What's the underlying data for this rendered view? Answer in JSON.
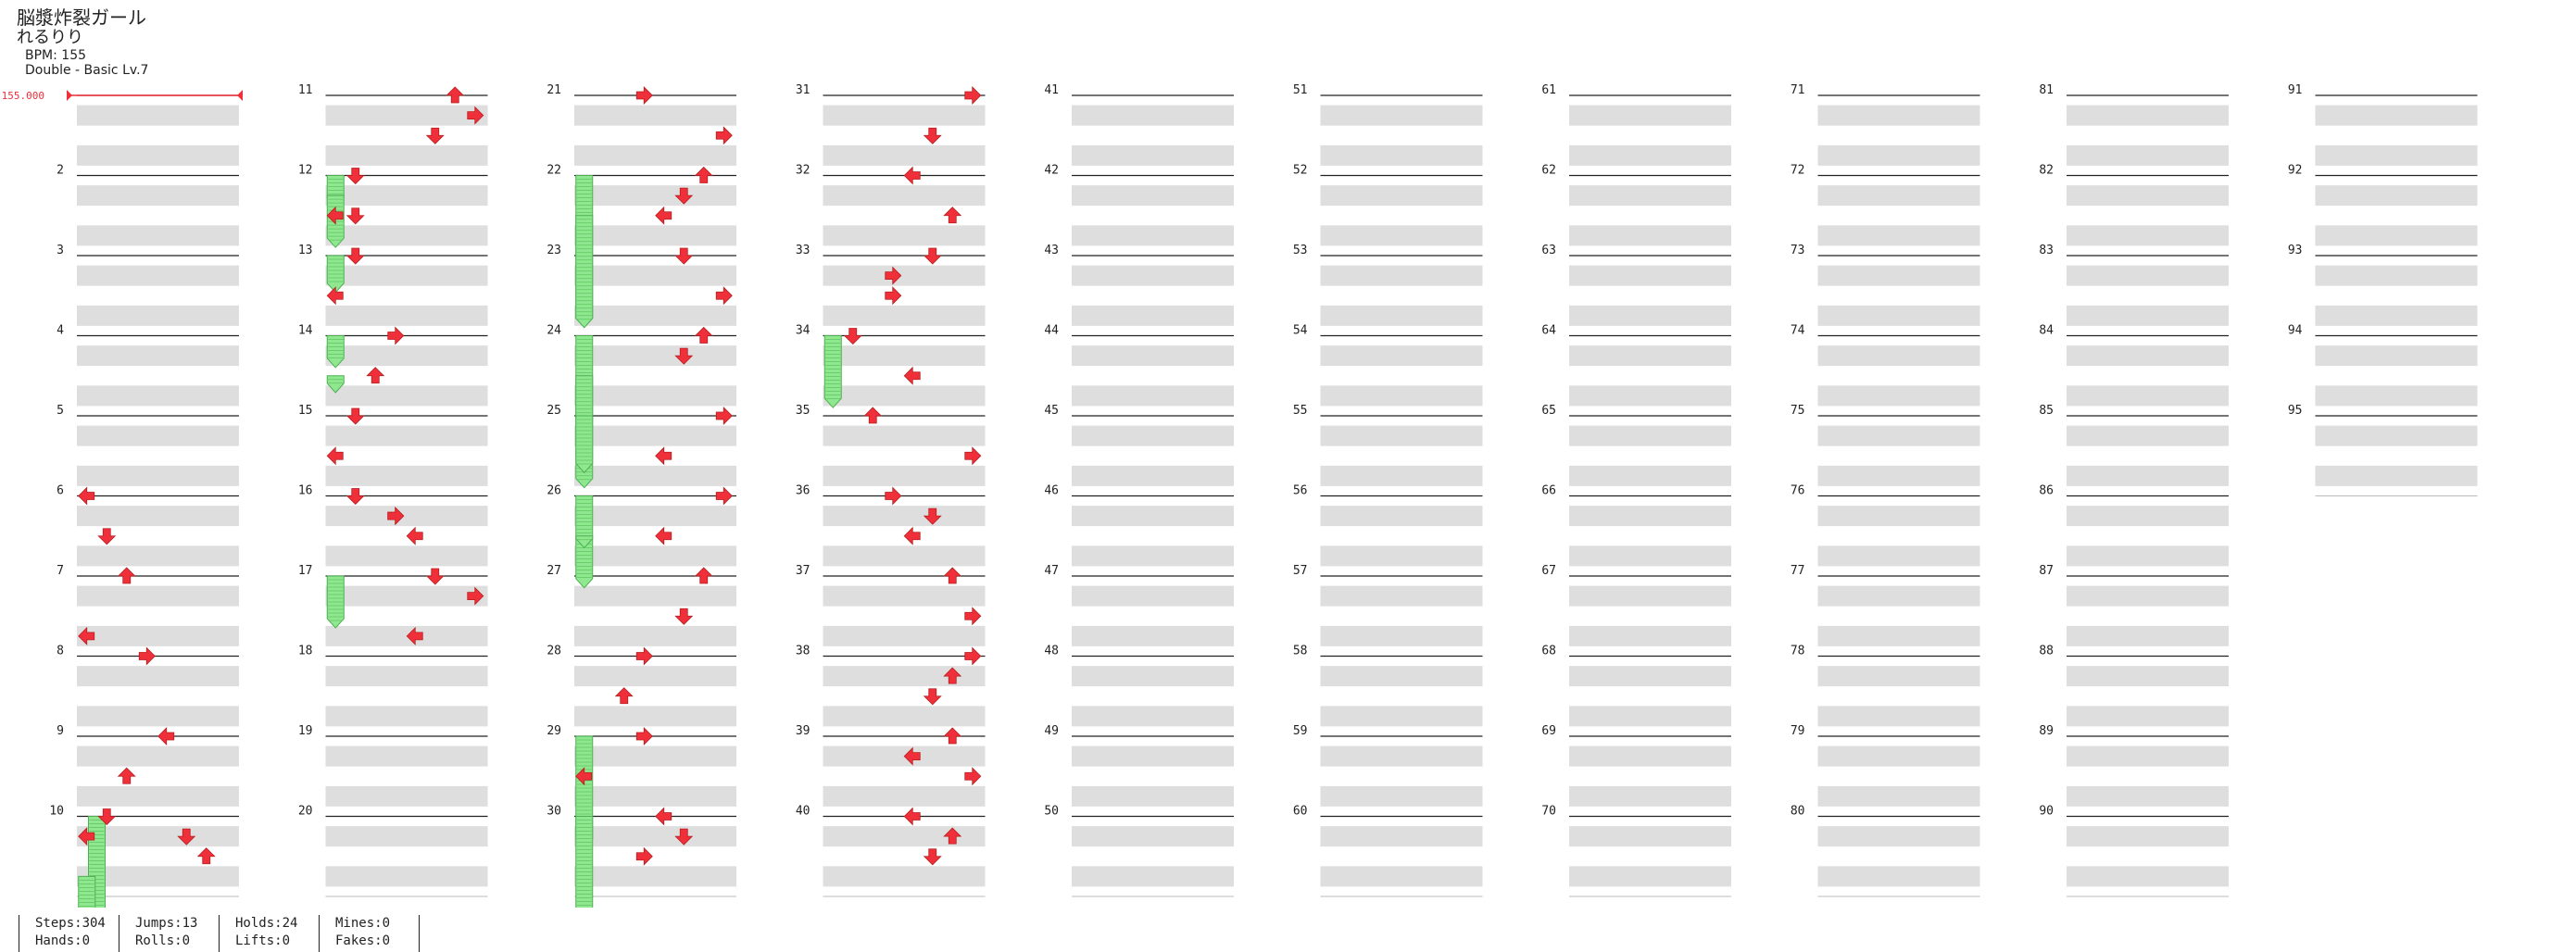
{
  "song": {
    "title": "脳漿炸裂ガール",
    "artist": "れるりり",
    "bpm": "BPM: 155",
    "difficulty": "Double - Basic Lv.7"
  },
  "bpm_marker": "155.000",
  "stats": [
    {
      "top": "Steps:304",
      "bottom": "Hands:0"
    },
    {
      "top": "Jumps:13",
      "bottom": "Rolls:0"
    },
    {
      "top": "Holds:24",
      "bottom": "Lifts:0"
    },
    {
      "top": "Mines:0",
      "bottom": "Fakes:0"
    }
  ],
  "colors": {
    "arrow": "#ef2f3a",
    "hold": "#8fe88f",
    "rowShade": "#dedede",
    "measureLine": "#222222"
  },
  "chart": {
    "type": "stepchart",
    "style": "dance-double",
    "lanes": [
      "P1-Left",
      "P1-Down",
      "P1-Up",
      "P1-Right",
      "P2-Left",
      "P2-Down",
      "P2-Up",
      "P2-Right"
    ],
    "columns": 10,
    "measures_per_column": 10,
    "measure_labels": [
      "2",
      "3",
      "4",
      "5",
      "6",
      "7",
      "8",
      "9",
      "10",
      "11",
      "12",
      "13",
      "14",
      "15",
      "16",
      "17",
      "18",
      "19",
      "20",
      "21",
      "22",
      "23",
      "24",
      "25",
      "26",
      "27",
      "28",
      "29",
      "30",
      "31",
      "32",
      "33",
      "34",
      "35",
      "36",
      "37",
      "38",
      "39",
      "40",
      "41",
      "42",
      "43",
      "44",
      "45",
      "46",
      "47",
      "48",
      "49",
      "50",
      "51",
      "52",
      "53",
      "54",
      "55",
      "56",
      "57",
      "58",
      "59",
      "60",
      "61",
      "62",
      "63",
      "64",
      "65",
      "66",
      "67",
      "68",
      "69",
      "70",
      "71",
      "72",
      "73",
      "74",
      "75",
      "76",
      "77",
      "78",
      "79",
      "80",
      "81",
      "82",
      "83",
      "84",
      "85",
      "86",
      "87",
      "88",
      "89",
      "90",
      "91",
      "92",
      "93",
      "94",
      "95"
    ],
    "notes": [
      [
        6,
        0,
        0
      ],
      [
        6,
        0.5,
        1
      ],
      [
        7,
        0,
        2
      ],
      [
        7,
        0.75,
        0
      ],
      [
        8,
        0,
        3
      ],
      [
        9,
        0,
        4
      ],
      [
        9,
        0.5,
        2
      ],
      [
        10,
        0,
        1
      ],
      [
        10,
        0.25,
        0
      ],
      [
        10.25,
        0,
        5
      ],
      [
        10.5,
        0,
        6
      ],
      [
        11,
        0,
        6
      ],
      [
        11,
        0.25,
        7
      ],
      [
        11.5,
        0,
        5
      ],
      [
        12,
        0,
        1
      ],
      [
        12.5,
        0,
        0
      ],
      [
        12.5,
        0,
        1
      ],
      [
        13,
        0,
        1
      ],
      [
        13,
        0.5,
        0
      ],
      [
        14,
        0,
        3
      ],
      [
        14,
        0.5,
        2
      ],
      [
        15,
        0,
        1
      ],
      [
        15,
        0.5,
        0
      ],
      [
        16,
        0,
        1
      ],
      [
        16,
        0.25,
        3
      ],
      [
        16.25,
        0,
        3
      ],
      [
        16.5,
        0,
        4
      ],
      [
        17,
        0,
        5
      ],
      [
        17,
        0.25,
        7
      ],
      [
        17.75,
        0,
        4
      ],
      [
        21,
        0,
        3
      ],
      [
        21,
        0.5,
        7
      ],
      [
        22,
        0,
        6
      ],
      [
        22,
        0.25,
        5
      ],
      [
        22.5,
        0,
        4
      ],
      [
        23,
        0,
        5
      ],
      [
        23,
        0.5,
        7
      ],
      [
        24,
        0,
        6
      ],
      [
        24,
        0.25,
        5
      ],
      [
        25,
        0,
        7
      ],
      [
        25,
        0.5,
        4
      ],
      [
        26,
        0,
        7
      ],
      [
        26,
        0.5,
        4
      ],
      [
        27,
        0,
        6
      ],
      [
        27,
        0.5,
        5
      ],
      [
        28,
        0,
        3
      ],
      [
        28,
        0.5,
        2
      ],
      [
        29,
        0,
        3
      ],
      [
        29,
        0.5,
        0
      ],
      [
        30,
        0,
        4
      ],
      [
        30,
        0.25,
        5
      ],
      [
        30.5,
        0,
        3
      ],
      [
        31,
        0,
        7
      ],
      [
        31,
        0.5,
        5
      ],
      [
        32,
        0,
        4
      ],
      [
        32,
        0.5,
        6
      ],
      [
        33,
        0,
        5
      ],
      [
        33,
        0.25,
        3
      ],
      [
        33.5,
        0,
        3
      ],
      [
        34,
        0,
        1
      ],
      [
        34,
        0.5,
        4
      ],
      [
        35,
        0,
        2
      ],
      [
        35,
        0.5,
        7
      ],
      [
        36,
        0,
        3
      ],
      [
        36,
        0.25,
        5
      ],
      [
        36.5,
        0,
        4
      ],
      [
        37,
        0,
        6
      ],
      [
        37,
        0.5,
        7
      ],
      [
        38,
        0,
        7
      ],
      [
        38,
        0.25,
        6
      ],
      [
        38.5,
        0,
        5
      ],
      [
        39,
        0,
        6
      ],
      [
        39,
        0.25,
        4
      ],
      [
        39.5,
        0,
        7
      ],
      [
        40,
        0,
        4
      ],
      [
        40,
        0.25,
        6
      ],
      [
        40.5,
        0,
        5
      ]
    ],
    "holds": [
      [
        12,
        0,
        1.5
      ],
      [
        12.25,
        0,
        2.5
      ],
      [
        13,
        0,
        1.75
      ],
      [
        14,
        0,
        1.5
      ],
      [
        14.5,
        0,
        0.75
      ],
      [
        17,
        0,
        2.5
      ],
      [
        22,
        0,
        7.5
      ],
      [
        22.5,
        0,
        5.5
      ],
      [
        24,
        0,
        4.5
      ],
      [
        24.5,
        0,
        5.5
      ],
      [
        25,
        0,
        2.75
      ],
      [
        26,
        0,
        4.5
      ],
      [
        26.5,
        0,
        0.5
      ],
      [
        29,
        0,
        5.5
      ],
      [
        30,
        0,
        5.5
      ],
      [
        10,
        0.5,
        7.5
      ],
      [
        10.75,
        0,
        5.5
      ],
      [
        34,
        0,
        3.5
      ]
    ]
  }
}
